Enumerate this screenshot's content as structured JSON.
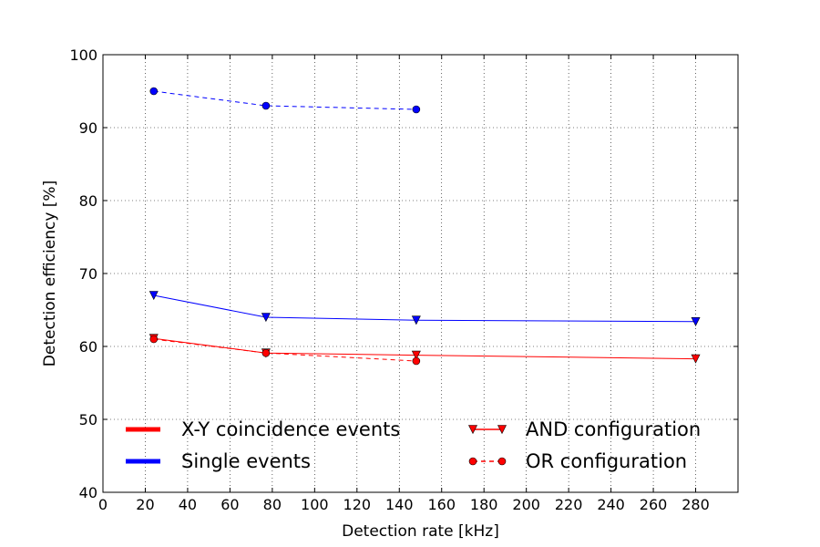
{
  "chart_data": {
    "type": "line",
    "xlabel": "Detection rate [kHz]",
    "ylabel": "Detection efficiency [%]",
    "xlim": [
      0,
      300
    ],
    "ylim": [
      40,
      100
    ],
    "xticks": [
      0,
      20,
      40,
      60,
      80,
      100,
      120,
      140,
      160,
      180,
      200,
      220,
      240,
      260,
      280
    ],
    "yticks": [
      40,
      50,
      60,
      70,
      80,
      90,
      100
    ],
    "grid": true,
    "legend_placement": "lower center, two columns",
    "series": [
      {
        "event_type": "Single events",
        "configuration": "OR configuration",
        "color": "#0000ff",
        "linestyle": "dashed",
        "marker": "circle",
        "x": [
          24,
          77,
          148
        ],
        "y": [
          95,
          93,
          92.5
        ]
      },
      {
        "event_type": "Single events",
        "configuration": "AND configuration",
        "color": "#0000ff",
        "linestyle": "solid",
        "marker": "triangle-down",
        "x": [
          24,
          77,
          148,
          280
        ],
        "y": [
          67,
          64,
          63.6,
          63.4
        ]
      },
      {
        "event_type": "X-Y coincidence events",
        "configuration": "AND configuration",
        "color": "#ff0000",
        "linestyle": "solid",
        "marker": "triangle-down",
        "x": [
          24,
          77,
          148,
          280
        ],
        "y": [
          61.1,
          59.1,
          58.8,
          58.3
        ]
      },
      {
        "event_type": "X-Y coincidence events",
        "configuration": "OR configuration",
        "color": "#ff0000",
        "linestyle": "dashed",
        "marker": "circle",
        "x": [
          24,
          77,
          148
        ],
        "y": [
          61,
          59.1,
          58
        ]
      }
    ],
    "legend": {
      "colors": [
        {
          "label": "X-Y coincidence events",
          "color": "#ff0000"
        },
        {
          "label": "Single events",
          "color": "#0000ff"
        }
      ],
      "styles": [
        {
          "label": "AND configuration",
          "linestyle": "solid",
          "marker": "triangle-down",
          "color": "#ff0000"
        },
        {
          "label": "OR configuration",
          "linestyle": "dashed",
          "marker": "circle",
          "color": "#ff0000"
        }
      ]
    }
  }
}
